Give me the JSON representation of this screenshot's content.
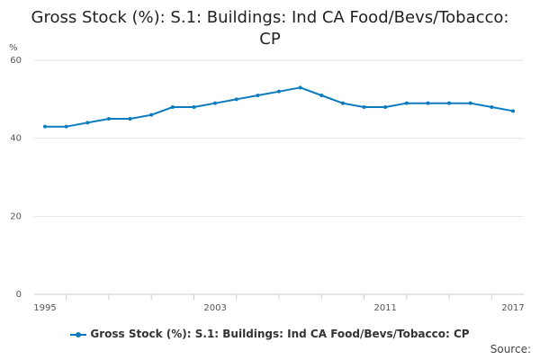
{
  "chart_data": {
    "type": "line",
    "title_lines": [
      "Gross Stock (%): S.1: Buildings: Ind CA Food/Bevs/Tobacco:",
      "CP"
    ],
    "ylabel": "%",
    "ylim": [
      0,
      60
    ],
    "yticks": [
      0,
      20,
      40,
      60
    ],
    "xlim": [
      1995,
      2017
    ],
    "xtick_labels": [
      "1995",
      "2003",
      "2011",
      "2017"
    ],
    "x": [
      1995,
      1996,
      1997,
      1998,
      1999,
      2000,
      2001,
      2002,
      2003,
      2004,
      2005,
      2006,
      2007,
      2008,
      2009,
      2010,
      2011,
      2012,
      2013,
      2014,
      2015,
      2016,
      2017
    ],
    "series": [
      {
        "name": "Gross Stock (%): S.1: Buildings: Ind CA Food/Bevs/Tobacco: CP",
        "values": [
          43,
          43,
          44,
          45,
          45,
          46,
          48,
          48,
          49,
          50,
          51,
          52,
          53,
          51,
          49,
          48,
          48,
          49,
          49,
          49,
          49,
          48,
          47
        ]
      }
    ],
    "grid": true,
    "legend_position": "bottom",
    "colors": {
      "line": "#0b7bc0",
      "grid": "#e6e6e6",
      "axis": "#cccccc"
    }
  },
  "source_label": "Source:"
}
